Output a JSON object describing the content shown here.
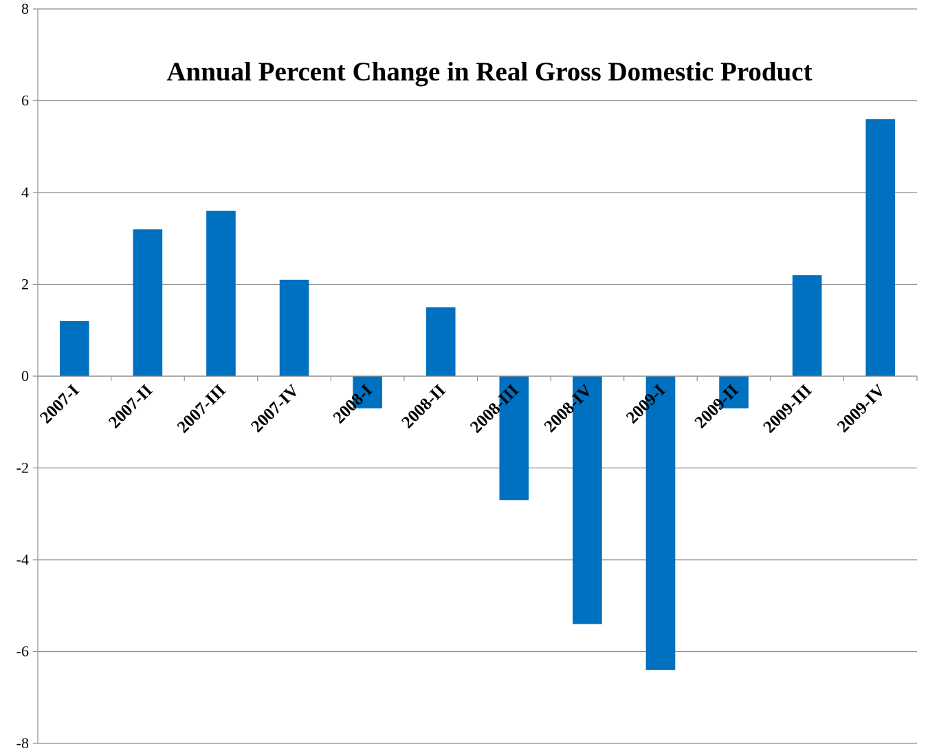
{
  "chart_data": {
    "type": "bar",
    "title": "Annual Percent Change in Real Gross Domestic Product",
    "xlabel": "",
    "ylabel": "",
    "categories": [
      "2007-I",
      "2007-II",
      "2007-III",
      "2007-IV",
      "2008-I",
      "2008-II",
      "2008-III",
      "2008-IV",
      "2009-I",
      "2009-II",
      "2009-III",
      "2009-IV"
    ],
    "values": [
      1.2,
      3.2,
      3.6,
      2.1,
      -0.7,
      1.5,
      -2.7,
      -5.4,
      -6.4,
      -0.7,
      2.2,
      5.6
    ],
    "ylim": [
      -8,
      8
    ],
    "yticks": [
      "8",
      "6",
      "4",
      "2",
      "0",
      "-2",
      "-4",
      "-6",
      "-8"
    ],
    "grid": true,
    "legend": "none",
    "bar_color": "#0070c0"
  }
}
